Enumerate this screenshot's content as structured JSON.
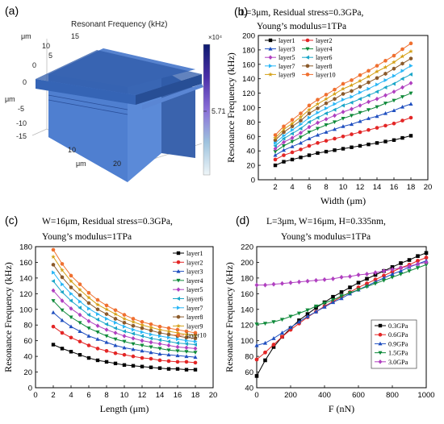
{
  "panels": {
    "a": {
      "label": "(a)",
      "title": "Resonant Frequency (kHz)",
      "axis_unit": "μm",
      "y_ticks": [
        "15",
        "10",
        "5",
        "0"
      ],
      "z_ticks": [
        "0",
        "-5",
        "-10",
        "-15"
      ],
      "x_ticks": [
        "10",
        "20"
      ],
      "colorbar_exponent": "×10⁴",
      "colorbar_value": "5.71",
      "colors": {
        "box_top": "#4472c4",
        "box_front": "#5b8ad8",
        "box_side": "#3a63ad",
        "membrane": "#2e5aa8"
      }
    }
  },
  "chart_data": [
    {
      "id": "b",
      "label": "(b)",
      "type": "line",
      "annotation_line1": "L=3μm, Residual stress=0.3GPa,",
      "annotation_line2": "Young’s modulus=1TPa",
      "xlabel": "Width (μm)",
      "ylabel": "Resonance Frequency (kHz)",
      "xlim": [
        0,
        20
      ],
      "ylim": [
        0,
        200
      ],
      "x_ticks": [
        2,
        4,
        6,
        8,
        10,
        12,
        14,
        16,
        18,
        20
      ],
      "y_ticks": [
        0,
        20,
        40,
        60,
        80,
        100,
        120,
        140,
        160,
        180,
        200
      ],
      "legend_position": "top-left",
      "legend_columns": 2,
      "x": [
        2,
        3,
        4,
        5,
        6,
        7,
        8,
        9,
        10,
        11,
        12,
        13,
        14,
        15,
        16,
        17,
        18
      ],
      "series": [
        {
          "name": "layer1",
          "color": "#000000",
          "marker": "square",
          "values": [
            20,
            25,
            28,
            31,
            34,
            37,
            39,
            41,
            43,
            45,
            47,
            49,
            51,
            53,
            55,
            58,
            61
          ]
        },
        {
          "name": "layer2",
          "color": "#e32626",
          "marker": "circle",
          "values": [
            28,
            34,
            38,
            42,
            47,
            51,
            54,
            57,
            60,
            63,
            66,
            69,
            72,
            75,
            78,
            82,
            86
          ]
        },
        {
          "name": "layer3",
          "color": "#1f4fc0",
          "marker": "triangle-up",
          "values": [
            34,
            41,
            46,
            51,
            57,
            62,
            66,
            70,
            74,
            77,
            81,
            85,
            88,
            92,
            96,
            101,
            105
          ]
        },
        {
          "name": "layer4",
          "color": "#0f8a3a",
          "marker": "triangle-down",
          "values": [
            39,
            47,
            53,
            59,
            66,
            71,
            76,
            80,
            85,
            89,
            93,
            97,
            101,
            106,
            110,
            115,
            120
          ]
        },
        {
          "name": "layer5",
          "color": "#b040c0",
          "marker": "diamond",
          "values": [
            43,
            52,
            58,
            65,
            73,
            79,
            84,
            89,
            94,
            98,
            103,
            108,
            112,
            117,
            122,
            128,
            134
          ]
        },
        {
          "name": "layer6",
          "color": "#1aa6c8",
          "marker": "triangle-left",
          "values": [
            47,
            57,
            64,
            71,
            80,
            86,
            92,
            97,
            103,
            107,
            112,
            117,
            122,
            128,
            133,
            140,
            146
          ]
        },
        {
          "name": "layer7",
          "color": "#29b6f6",
          "marker": "triangle-right",
          "values": [
            51,
            61,
            69,
            77,
            86,
            93,
            99,
            105,
            111,
            115,
            121,
            126,
            132,
            138,
            144,
            151,
            158
          ]
        },
        {
          "name": "layer8",
          "color": "#8b5a2b",
          "marker": "hexagon",
          "values": [
            55,
            66,
            74,
            82,
            92,
            99,
            106,
            112,
            119,
            123,
            129,
            135,
            141,
            147,
            154,
            161,
            168
          ]
        },
        {
          "name": "layer9",
          "color": "#d4a017",
          "marker": "star",
          "values": [
            58,
            70,
            78,
            87,
            97,
            105,
            112,
            119,
            126,
            131,
            137,
            143,
            150,
            156,
            163,
            171,
            178
          ]
        },
        {
          "name": "layer10",
          "color": "#f07030",
          "marker": "circle",
          "values": [
            62,
            74,
            83,
            92,
            103,
            111,
            118,
            125,
            133,
            138,
            145,
            151,
            158,
            165,
            172,
            181,
            189
          ]
        }
      ]
    },
    {
      "id": "c",
      "label": "(c)",
      "type": "line",
      "annotation_line1": "W=16μm, Residual stress=0.3GPa,",
      "annotation_line2": "Young’s modulus=1TPa",
      "xlabel": "Length (μm)",
      "ylabel": "Resonance Frequency (kHz)",
      "xlim": [
        0,
        20
      ],
      "ylim": [
        0,
        180
      ],
      "x_ticks": [
        0,
        2,
        4,
        6,
        8,
        10,
        12,
        14,
        16,
        18,
        20
      ],
      "y_ticks": [
        0,
        20,
        40,
        60,
        80,
        100,
        120,
        140,
        160,
        180
      ],
      "legend_position": "right",
      "legend_columns": 1,
      "x": [
        2,
        3,
        4,
        5,
        6,
        7,
        8,
        9,
        10,
        11,
        12,
        13,
        14,
        15,
        16,
        17,
        18
      ],
      "series": [
        {
          "name": "layer1",
          "color": "#000000",
          "marker": "square",
          "values": [
            55,
            50,
            46,
            42,
            38,
            35,
            33,
            31,
            29,
            28,
            27,
            26,
            25,
            24,
            24,
            23,
            23
          ]
        },
        {
          "name": "layer2",
          "color": "#e32626",
          "marker": "circle",
          "values": [
            78,
            70,
            64,
            59,
            54,
            50,
            47,
            44,
            42,
            40,
            38,
            37,
            35,
            34,
            33,
            33,
            32
          ]
        },
        {
          "name": "layer3",
          "color": "#1f4fc0",
          "marker": "triangle-up",
          "values": [
            96,
            86,
            78,
            72,
            66,
            62,
            58,
            54,
            51,
            49,
            47,
            45,
            43,
            42,
            41,
            40,
            39
          ]
        },
        {
          "name": "layer4",
          "color": "#0f8a3a",
          "marker": "triangle-down",
          "values": [
            111,
            99,
            90,
            83,
            76,
            71,
            66,
            62,
            59,
            56,
            54,
            52,
            50,
            48,
            47,
            46,
            45
          ]
        },
        {
          "name": "layer5",
          "color": "#b040c0",
          "marker": "diamond",
          "values": [
            124,
            111,
            101,
            93,
            85,
            79,
            74,
            70,
            66,
            63,
            60,
            58,
            56,
            54,
            52,
            51,
            50
          ]
        },
        {
          "name": "layer6",
          "color": "#1aa6c8",
          "marker": "triangle-left",
          "values": [
            136,
            122,
            111,
            102,
            93,
            87,
            81,
            76,
            72,
            69,
            66,
            63,
            61,
            59,
            57,
            56,
            55
          ]
        },
        {
          "name": "layer7",
          "color": "#29b6f6",
          "marker": "triangle-right",
          "values": [
            147,
            132,
            120,
            110,
            101,
            94,
            88,
            83,
            78,
            74,
            71,
            68,
            66,
            64,
            62,
            60,
            59
          ]
        },
        {
          "name": "layer8",
          "color": "#8b5a2b",
          "marker": "hexagon",
          "values": [
            157,
            141,
            128,
            118,
            108,
            100,
            94,
            88,
            83,
            79,
            76,
            73,
            70,
            68,
            66,
            64,
            63
          ]
        },
        {
          "name": "layer9",
          "color": "#d4a017",
          "marker": "star",
          "values": [
            167,
            150,
            136,
            125,
            115,
            106,
            100,
            94,
            88,
            84,
            80,
            77,
            74,
            72,
            70,
            68,
            67
          ]
        },
        {
          "name": "layer10",
          "color": "#f07030",
          "marker": "circle",
          "values": [
            176,
            158,
            143,
            132,
            121,
            112,
            105,
            99,
            93,
            88,
            84,
            81,
            78,
            76,
            74,
            72,
            70
          ]
        }
      ]
    },
    {
      "id": "d",
      "label": "(d)",
      "type": "line",
      "annotation_line1": "L=3μm, W=16μm, H=0.335nm,",
      "annotation_line2": "Young’s modulus=1TPa",
      "xlabel": "F (nN)",
      "ylabel": "Resonance Frequency (kHz)",
      "xlim": [
        0,
        1000
      ],
      "ylim": [
        40,
        220
      ],
      "x_ticks": [
        0,
        200,
        400,
        600,
        800,
        1000
      ],
      "y_ticks": [
        40,
        60,
        80,
        100,
        120,
        140,
        160,
        180,
        200,
        220
      ],
      "legend_position": "bottom-right",
      "legend_columns": 1,
      "x": [
        0,
        50,
        100,
        150,
        200,
        250,
        300,
        350,
        400,
        450,
        500,
        550,
        600,
        650,
        700,
        750,
        800,
        850,
        900,
        950,
        1000
      ],
      "series": [
        {
          "name": "0.3GPa",
          "color": "#000000",
          "marker": "square",
          "values": [
            55,
            75,
            92,
            105,
            116,
            126,
            134,
            142,
            149,
            156,
            162,
            168,
            174,
            179,
            184,
            189,
            194,
            199,
            203,
            208,
            212
          ]
        },
        {
          "name": "0.6GPa",
          "color": "#e32626",
          "marker": "circle",
          "values": [
            76,
            85,
            95,
            105,
            114,
            122,
            130,
            137,
            144,
            150,
            156,
            162,
            168,
            173,
            178,
            183,
            188,
            193,
            197,
            202,
            206
          ]
        },
        {
          "name": "0.9GPa",
          "color": "#1f4fc0",
          "marker": "triangle-up",
          "values": [
            94,
            97,
            103,
            110,
            117,
            124,
            131,
            137,
            143,
            149,
            154,
            160,
            165,
            170,
            175,
            180,
            185,
            189,
            194,
            198,
            202
          ]
        },
        {
          "name": "1.5GPa",
          "color": "#0f8a3a",
          "marker": "triangle-down",
          "values": [
            121,
            122,
            124,
            127,
            131,
            135,
            139,
            144,
            148,
            152,
            157,
            161,
            165,
            169,
            173,
            177,
            181,
            185,
            189,
            193,
            197
          ]
        },
        {
          "name": "3.0GPa",
          "color": "#b040c0",
          "marker": "diamond",
          "values": [
            171,
            171,
            172,
            173,
            174,
            175,
            176,
            177,
            178,
            179,
            181,
            182,
            184,
            185,
            187,
            189,
            191,
            193,
            195,
            198,
            200
          ]
        }
      ]
    }
  ]
}
